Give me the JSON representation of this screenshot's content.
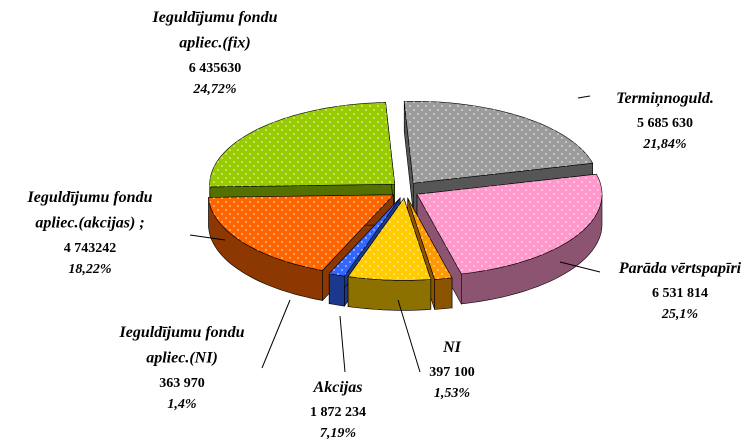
{
  "chart_data": {
    "type": "pie",
    "categories": [
      "Termiņnoguld.",
      "Parāda vērtspapīri",
      "NI",
      "Akcijas",
      "Ieguldījumu fondu\napliec.(NI)",
      "Ieguldījumu fondu\napliec.(akcijas) ;",
      "Ieguldījumu fondu\napliec.(fix)"
    ],
    "values": [
      5685630,
      6531814,
      397100,
      1872234,
      363970,
      4743242,
      6435630
    ],
    "value_labels": [
      "5 685 630",
      "6 531 814",
      "397 100",
      "1 872 234",
      "363 970",
      "4 743242",
      "6 435630"
    ],
    "percentages": [
      21.84,
      25.1,
      1.53,
      7.19,
      1.4,
      18.22,
      24.72
    ],
    "percentage_labels": [
      "21,84%",
      "25,1%",
      "1,53%",
      "7,19%",
      "1,4%",
      "18,22%",
      "24,72%"
    ],
    "colors": [
      "#9c9c9c",
      "#ff99cc",
      "#ff9900",
      "#ffcc00",
      "#3366ff",
      "#ff6600",
      "#99cc00"
    ]
  }
}
